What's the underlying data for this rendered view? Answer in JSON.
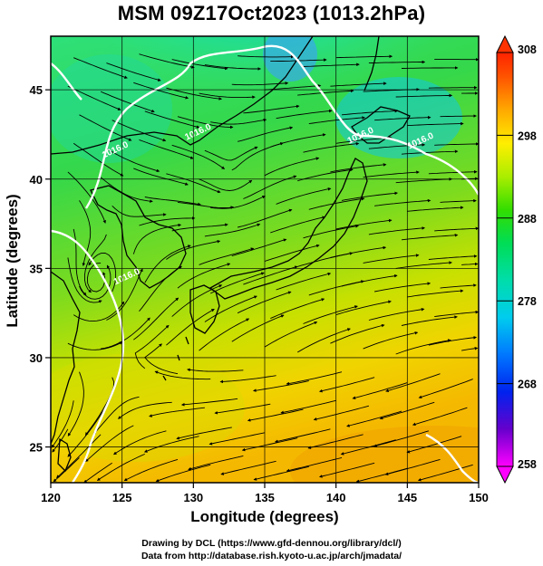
{
  "title": "MSM 09Z17Oct2023 (1013.2hPa)",
  "map": {
    "xlabel": "Longitude (degrees)",
    "ylabel": "Latitude  (degrees)",
    "lon_range": [
      120,
      150
    ],
    "lat_range": [
      23,
      48
    ],
    "lon_ticks": [
      120,
      125,
      130,
      135,
      140,
      145,
      150
    ],
    "lat_ticks": [
      25,
      30,
      35,
      40,
      45
    ],
    "isobar_labels": [
      {
        "text": "1016.0",
        "lon": 124.6,
        "lat": 41.5
      },
      {
        "text": "1016.0",
        "lon": 130.4,
        "lat": 42.5
      },
      {
        "text": "1016.0",
        "lon": 141.8,
        "lat": 42.3
      },
      {
        "text": "1016.0",
        "lon": 146.0,
        "lat": 42.0
      },
      {
        "text": "1016.0",
        "lon": 125.4,
        "lat": 34.4
      }
    ]
  },
  "colorbar": {
    "ticks": [
      {
        "value": 258,
        "label": "258"
      },
      {
        "value": 268,
        "label": "268"
      },
      {
        "value": 278,
        "label": "278"
      },
      {
        "value": 288,
        "label": "288"
      },
      {
        "value": 298,
        "label": "298"
      },
      {
        "value": 308,
        "label": "308"
      }
    ],
    "min": 258,
    "max": 308,
    "colors": [
      "#ff00ff",
      "#4400cc",
      "#0033ff",
      "#0099ff",
      "#00e0d0",
      "#00dd66",
      "#22dd00",
      "#aaee00",
      "#ffee00",
      "#ffaa00",
      "#ff6600",
      "#ff2200"
    ]
  },
  "credits": {
    "line1": "Drawing by DCL (https://www.gfd-dennou.org/library/dcl/)",
    "line2": "Data from http://database.rish.kyoto-u.ac.jp/arch/jmadata/"
  }
}
